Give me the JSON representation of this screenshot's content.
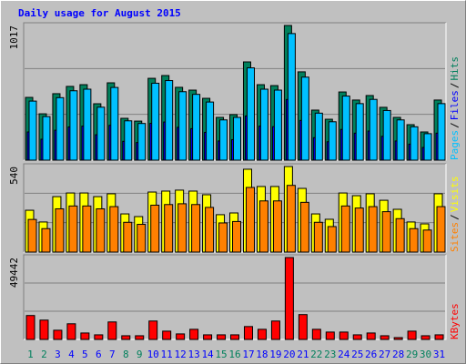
{
  "chart_data": [
    {
      "type": "bar",
      "title": "Daily usage for August 2015",
      "ylim": [
        0,
        1017
      ],
      "yticks": [
        1017
      ],
      "legend_separator": "/",
      "series": [
        {
          "name": "Hits",
          "color": "#00805c",
          "values": [
            474,
            350,
            502,
            557,
            570,
            426,
            584,
            316,
            295,
            618,
            639,
            550,
            529,
            467,
            323,
            344,
            742,
            570,
            563,
            1017,
            667,
            378,
            309,
            515,
            454,
            488,
            399,
            323,
            268,
            213,
            454
          ]
        },
        {
          "name": "Files",
          "color": "#0000ff",
          "values": [
            213,
            158,
            226,
            251,
            257,
            192,
            263,
            142,
            133,
            278,
            288,
            248,
            238,
            210,
            145,
            155,
            334,
            257,
            253,
            458,
            300,
            170,
            139,
            232,
            204,
            220,
            180,
            145,
            121,
            96,
            204
          ]
        },
        {
          "name": "Pages",
          "color": "#00c0ff",
          "values": [
            446,
            329,
            472,
            524,
            536,
            400,
            549,
            297,
            277,
            581,
            601,
            517,
            497,
            439,
            304,
            323,
            697,
            536,
            529,
            956,
            627,
            355,
            290,
            484,
            427,
            459,
            375,
            304,
            252,
            200,
            427
          ]
        }
      ]
    },
    {
      "type": "bar",
      "ylim": [
        0,
        540
      ],
      "yticks": [
        540
      ],
      "legend_separator": "/",
      "series": [
        {
          "name": "Visits",
          "color": "#ffff00",
          "values": [
            264,
            190,
            350,
            373,
            373,
            350,
            368,
            241,
            224,
            379,
            385,
            391,
            385,
            362,
            236,
            247,
            523,
            414,
            414,
            540,
            402,
            241,
            207,
            373,
            356,
            368,
            327,
            270,
            190,
            178,
            368
          ]
        },
        {
          "name": "Sites",
          "color": "#ff8000",
          "values": [
            206,
            148,
            273,
            291,
            291,
            273,
            287,
            188,
            175,
            296,
            300,
            305,
            300,
            282,
            184,
            193,
            408,
            323,
            323,
            421,
            314,
            188,
            161,
            291,
            278,
            287,
            255,
            211,
            148,
            139,
            287
          ]
        }
      ]
    },
    {
      "type": "bar",
      "ylim": [
        0,
        49442
      ],
      "yticks": [
        49442
      ],
      "legend_separator": "/",
      "categories": [
        "1",
        "2",
        "3",
        "4",
        "5",
        "6",
        "7",
        "8",
        "9",
        "10",
        "11",
        "12",
        "13",
        "14",
        "15",
        "16",
        "17",
        "18",
        "19",
        "20",
        "21",
        "22",
        "23",
        "24",
        "25",
        "26",
        "27",
        "28",
        "29",
        "30",
        "31"
      ],
      "highlight": [
        0,
        1,
        7,
        8,
        14,
        15,
        21,
        22,
        28,
        29
      ],
      "highlight_color": "#00805c",
      "label_color": "#0000ff",
      "series": [
        {
          "name": "KBytes",
          "color": "#ff0000",
          "values": [
            14443,
            11666,
            5555,
            9444,
            3889,
            2778,
            10555,
            2222,
            2222,
            11110,
            5000,
            3333,
            6111,
            2778,
            2778,
            2778,
            7778,
            6111,
            11110,
            49442,
            15000,
            6111,
            4444,
            4444,
            2778,
            3889,
            2222,
            1111,
            5000,
            2222,
            2778
          ]
        }
      ]
    }
  ]
}
